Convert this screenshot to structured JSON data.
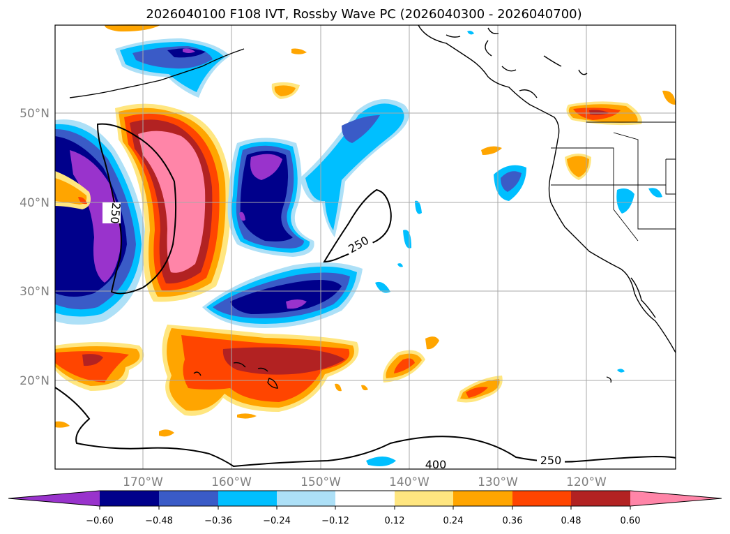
{
  "title": "2026040100 F108 IVT, Rossby Wave PC (2026040300 - 2026040700)",
  "map": {
    "lat_labels": [
      "50°N",
      "40°N",
      "30°N",
      "20°N"
    ],
    "lon_labels": [
      "170°W",
      "160°W",
      "150°W",
      "140°W",
      "130°W",
      "120°W"
    ],
    "contour_labels": [
      "250",
      "250",
      "400",
      "250"
    ]
  },
  "colorbar": {
    "ticks": [
      "−0.60",
      "−0.48",
      "−0.36",
      "−0.24",
      "−0.12",
      "0.12",
      "0.24",
      "0.36",
      "0.48",
      "0.60"
    ],
    "colors": {
      "neg_extend": "#9933cc",
      "neg060": "#00008b",
      "neg048": "#3a5bc7",
      "neg036": "#00bfff",
      "neg024": "#ade0f7",
      "neutral": "#ffffff",
      "pos012": "#ffe680",
      "pos024": "#ffa500",
      "pos036": "#ff4500",
      "pos048": "#b22222",
      "pos_extend": "#ff85a8"
    }
  }
}
